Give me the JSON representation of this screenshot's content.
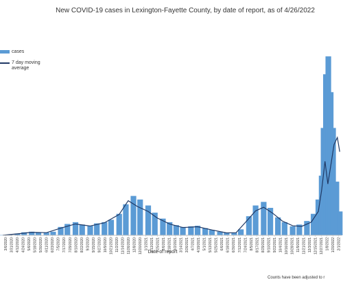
{
  "chart_data": {
    "type": "bar",
    "title": "New COVID-19 cases in Lexington-Fayette County, by date of report, as of 4/26/2022",
    "xlabel": "Date of report",
    "ylabel": "",
    "footnote": "Counts have been adjusted to r",
    "legend": {
      "position": "left",
      "bar_label": "cases",
      "line_label": "7 day moving average"
    },
    "colors": {
      "bars": "#5b9bd5",
      "line": "#1f3864",
      "axis": "#bfbfbf"
    },
    "ylim": [
      0,
      1800
    ],
    "grid": false,
    "x_tick_labels": [
      "3/6/2020",
      "3/31/2020",
      "4/12/2020",
      "4/24/2020",
      "5/6/2020",
      "5/18/2020",
      "5/30/2020",
      "6/11/2020",
      "6/23/2020",
      "7/5/2020",
      "7/17/2020",
      "7/29/2020",
      "8/10/2020",
      "8/22/2020",
      "9/3/2020",
      "9/15/2020",
      "9/27/2020",
      "10/9/2020",
      "10/21/2020",
      "11/2/2020",
      "11/14/2020",
      "11/26/2020",
      "12/8/2020",
      "12/20/2020",
      "1/1/2021",
      "1/13/2021",
      "1/25/2021",
      "2/6/2021",
      "2/18/2021",
      "3/2/2021",
      "3/14/2021",
      "3/26/2021",
      "4/7/2021",
      "4/19/2021",
      "5/1/2021",
      "5/13/2021",
      "5/25/2021",
      "6/6/2021",
      "6/18/2021",
      "6/30/2021",
      "7/12/2021",
      "7/24/2021",
      "8/5/2021",
      "8/17/2021",
      "8/29/2021",
      "9/10/2021",
      "9/22/2021",
      "10/4/2021",
      "10/16/2021",
      "10/28/2021",
      "11/9/2021",
      "11/21/2021",
      "12/3/2021",
      "12/15/2021",
      "12/27/2021",
      "1/8/2022",
      "1/20/2022",
      "2/1/2022"
    ],
    "series": [
      {
        "name": "cases",
        "kind": "bar",
        "x": [
          "2020-03-01",
          "2020-03-15",
          "2020-04-01",
          "2020-04-15",
          "2020-05-01",
          "2020-05-15",
          "2020-06-01",
          "2020-06-15",
          "2020-07-01",
          "2020-07-15",
          "2020-08-01",
          "2020-08-15",
          "2020-09-01",
          "2020-09-15",
          "2020-10-01",
          "2020-10-15",
          "2020-11-01",
          "2020-11-15",
          "2020-12-01",
          "2020-12-15",
          "2021-01-01",
          "2021-01-15",
          "2021-02-01",
          "2021-02-15",
          "2021-03-01",
          "2021-03-15",
          "2021-04-01",
          "2021-04-15",
          "2021-05-01",
          "2021-05-15",
          "2021-06-01",
          "2021-06-15",
          "2021-07-01",
          "2021-07-15",
          "2021-08-01",
          "2021-08-15",
          "2021-09-01",
          "2021-09-15",
          "2021-10-01",
          "2021-10-15",
          "2021-11-01",
          "2021-11-15",
          "2021-12-01",
          "2021-12-15",
          "2021-12-25",
          "2022-01-01",
          "2022-01-05",
          "2022-01-10",
          "2022-01-15",
          "2022-01-20",
          "2022-01-25",
          "2022-02-01",
          "2022-02-08"
        ],
        "values": [
          2,
          5,
          15,
          25,
          30,
          25,
          22,
          30,
          70,
          95,
          110,
          90,
          80,
          100,
          110,
          130,
          180,
          260,
          330,
          300,
          250,
          190,
          140,
          110,
          85,
          70,
          75,
          80,
          60,
          45,
          30,
          22,
          20,
          50,
          160,
          250,
          280,
          230,
          150,
          110,
          75,
          90,
          120,
          180,
          300,
          500,
          900,
          1350,
          1500,
          1200,
          900,
          450,
          200
        ]
      },
      {
        "name": "7 day moving average",
        "kind": "line",
        "x": [
          "2020-03-01",
          "2020-04-01",
          "2020-05-01",
          "2020-06-01",
          "2020-07-01",
          "2020-08-01",
          "2020-09-01",
          "2020-10-01",
          "2020-11-01",
          "2020-11-20",
          "2020-12-10",
          "2021-01-01",
          "2021-01-20",
          "2021-02-15",
          "2021-03-15",
          "2021-04-15",
          "2021-05-15",
          "2021-06-15",
          "2021-07-05",
          "2021-07-25",
          "2021-08-15",
          "2021-09-01",
          "2021-09-20",
          "2021-10-10",
          "2021-11-01",
          "2021-11-20",
          "2021-12-10",
          "2021-12-25",
          "2022-01-01",
          "2022-01-08",
          "2022-01-14",
          "2022-01-20",
          "2022-01-27",
          "2022-02-03",
          "2022-02-08"
        ],
        "values": [
          1,
          12,
          25,
          22,
          60,
          95,
          78,
          105,
          175,
          290,
          240,
          200,
          145,
          95,
          65,
          72,
          45,
          20,
          22,
          110,
          205,
          235,
          185,
          120,
          80,
          75,
          110,
          200,
          380,
          620,
          430,
          580,
          760,
          820,
          700
        ]
      }
    ]
  }
}
